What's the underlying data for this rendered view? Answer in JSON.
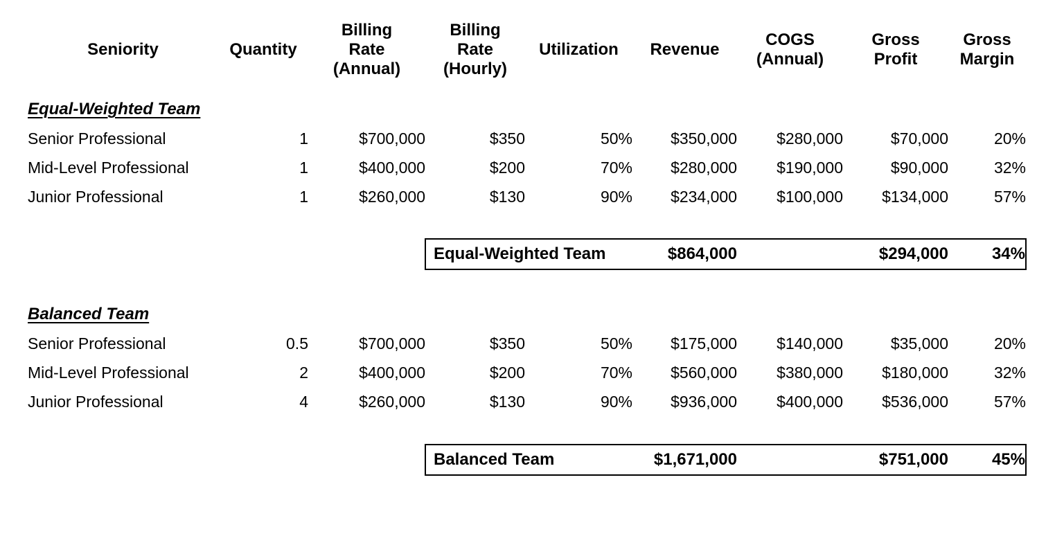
{
  "colors": {
    "text": "#000000",
    "background": "#ffffff",
    "summary_border": "#000000"
  },
  "columns": [
    {
      "label": "Seniority"
    },
    {
      "label": "Quantity"
    },
    {
      "label": "Billing\nRate\n(Annual)"
    },
    {
      "label": "Billing\nRate\n(Hourly)"
    },
    {
      "label": "Utilization"
    },
    {
      "label": "Revenue"
    },
    {
      "label": "COGS\n(Annual)"
    },
    {
      "label": "Gross\nProfit"
    },
    {
      "label": "Gross\nMargin"
    }
  ],
  "sections": [
    {
      "title": "Equal-Weighted Team",
      "rows": [
        {
          "seniority": "Senior Professional",
          "quantity": "1",
          "billing_rate_annual": "$700,000",
          "billing_rate_hourly": "$350",
          "utilization": "50%",
          "revenue": "$350,000",
          "cogs_annual": "$280,000",
          "gross_profit": "$70,000",
          "gross_margin": "20%"
        },
        {
          "seniority": "Mid-Level Professional",
          "quantity": "1",
          "billing_rate_annual": "$400,000",
          "billing_rate_hourly": "$200",
          "utilization": "70%",
          "revenue": "$280,000",
          "cogs_annual": "$190,000",
          "gross_profit": "$90,000",
          "gross_margin": "32%"
        },
        {
          "seniority": "Junior Professional",
          "quantity": "1",
          "billing_rate_annual": "$260,000",
          "billing_rate_hourly": "$130",
          "utilization": "90%",
          "revenue": "$234,000",
          "cogs_annual": "$100,000",
          "gross_profit": "$134,000",
          "gross_margin": "57%"
        }
      ],
      "summary": {
        "label": "Equal-Weighted Team",
        "revenue": "$864,000",
        "gross_profit": "$294,000",
        "gross_margin": "34%"
      }
    },
    {
      "title": "Balanced Team",
      "rows": [
        {
          "seniority": "Senior Professional",
          "quantity": "0.5",
          "billing_rate_annual": "$700,000",
          "billing_rate_hourly": "$350",
          "utilization": "50%",
          "revenue": "$175,000",
          "cogs_annual": "$140,000",
          "gross_profit": "$35,000",
          "gross_margin": "20%"
        },
        {
          "seniority": "Mid-Level Professional",
          "quantity": "2",
          "billing_rate_annual": "$400,000",
          "billing_rate_hourly": "$200",
          "utilization": "70%",
          "revenue": "$560,000",
          "cogs_annual": "$380,000",
          "gross_profit": "$180,000",
          "gross_margin": "32%"
        },
        {
          "seniority": "Junior Professional",
          "quantity": "4",
          "billing_rate_annual": "$260,000",
          "billing_rate_hourly": "$130",
          "utilization": "90%",
          "revenue": "$936,000",
          "cogs_annual": "$400,000",
          "gross_profit": "$536,000",
          "gross_margin": "57%"
        }
      ],
      "summary": {
        "label": "Balanced Team",
        "revenue": "$1,671,000",
        "gross_profit": "$751,000",
        "gross_margin": "45%"
      }
    }
  ]
}
